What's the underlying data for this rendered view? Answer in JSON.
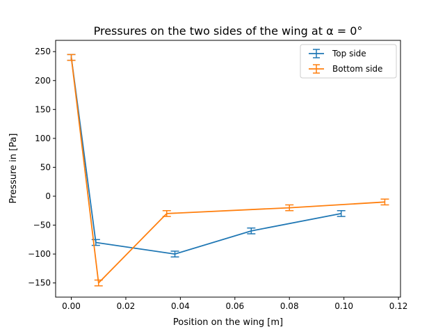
{
  "chart_data": {
    "type": "line",
    "title": "Pressures on the two sides of the wing at α = 0°",
    "xlabel": "Position on the wing [m]",
    "ylabel": "Pressure in [Pa]",
    "xlim": [
      -0.00575,
      0.12075
    ],
    "ylim": [
      -174.5,
      269.5
    ],
    "x_ticks": [
      0.0,
      0.02,
      0.04,
      0.06,
      0.08,
      0.1,
      0.12
    ],
    "x_tick_labels": [
      "0.00",
      "0.02",
      "0.04",
      "0.06",
      "0.08",
      "0.10",
      "0.12"
    ],
    "y_ticks": [
      -150,
      -100,
      -50,
      0,
      50,
      100,
      150,
      200,
      250
    ],
    "y_tick_labels": [
      "−150",
      "−100",
      "−50",
      "0",
      "50",
      "100",
      "150",
      "200",
      "250"
    ],
    "grid": false,
    "legend_position": "top-right",
    "series": [
      {
        "name": "Top side",
        "color": "#1f77b4",
        "x": [
          0.0,
          0.009,
          0.038,
          0.066,
          0.099
        ],
        "y": [
          240,
          -80,
          -100,
          -60,
          -30
        ],
        "yerr": [
          5,
          5,
          5,
          5,
          5
        ]
      },
      {
        "name": "Bottom side",
        "color": "#ff7f0e",
        "x": [
          0.0,
          0.01,
          0.035,
          0.08,
          0.115
        ],
        "y": [
          240,
          -150,
          -30,
          -20,
          -10
        ],
        "yerr": [
          5,
          5,
          5,
          5,
          5
        ]
      }
    ]
  }
}
